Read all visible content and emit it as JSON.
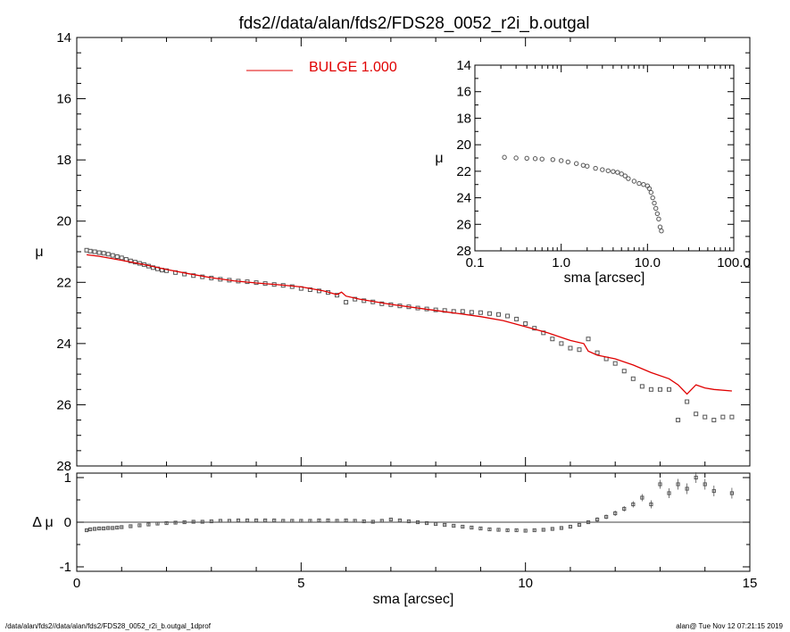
{
  "title": "fds2//data/alan/fds2/FDS28_0052_r2i_b.outgal",
  "footer": {
    "left": "/data/alan/fds2//data/alan/fds2/FDS28_0052_r2i_b.outgal_1dprof",
    "right": "alan@  Tue Nov 12 07:21:15 2019"
  },
  "colors": {
    "model": "#e00000",
    "data": "#555555",
    "axes": "#000000"
  },
  "chart_data": [
    {
      "type": "scatter",
      "panel": "main",
      "xlabel": "sma [arcsec]",
      "ylabel": "μ",
      "xlim": [
        0,
        15
      ],
      "ylim": [
        28,
        14
      ],
      "y_inverted": true,
      "x_ticks": [
        "0",
        "5",
        "10",
        "15"
      ],
      "y_ticks": [
        "14",
        "16",
        "18",
        "20",
        "22",
        "24",
        "26",
        "28"
      ],
      "legend": {
        "position": "top-left",
        "label": "BULGE  1.000"
      },
      "series": [
        {
          "kind": "points",
          "x": [
            0.22,
            0.3,
            0.4,
            0.5,
            0.6,
            0.7,
            0.8,
            0.9,
            1.0,
            1.1,
            1.2,
            1.3,
            1.4,
            1.5,
            1.6,
            1.7,
            1.8,
            1.9,
            2.0,
            2.2,
            2.4,
            2.6,
            2.8,
            3.0,
            3.2,
            3.4,
            3.6,
            3.8,
            4.0,
            4.2,
            4.4,
            4.6,
            4.8,
            5.0,
            5.2,
            5.4,
            5.6,
            5.8,
            6.0,
            6.2,
            6.4,
            6.6,
            6.8,
            7.0,
            7.2,
            7.4,
            7.6,
            7.8,
            8.0,
            8.2,
            8.4,
            8.6,
            8.8,
            9.0,
            9.2,
            9.4,
            9.6,
            9.8,
            10.0,
            10.2,
            10.4,
            10.6,
            10.8,
            11.0,
            11.2,
            11.4,
            11.6,
            11.8,
            12.0,
            12.2,
            12.4,
            12.6,
            12.8,
            13.0,
            13.2,
            13.4,
            13.6,
            13.8,
            14.0,
            14.2,
            14.4,
            14.6
          ],
          "y": [
            20.95,
            20.98,
            21.0,
            21.03,
            21.05,
            21.08,
            21.12,
            21.16,
            21.2,
            21.25,
            21.3,
            21.34,
            21.38,
            21.42,
            21.47,
            21.52,
            21.56,
            21.6,
            21.62,
            21.68,
            21.73,
            21.78,
            21.82,
            21.86,
            21.9,
            21.93,
            21.96,
            21.98,
            22.01,
            22.04,
            22.07,
            22.1,
            22.14,
            22.2,
            22.24,
            22.28,
            22.33,
            22.42,
            22.65,
            22.55,
            22.6,
            22.64,
            22.7,
            22.73,
            22.77,
            22.8,
            22.84,
            22.87,
            22.9,
            22.92,
            22.95,
            22.95,
            22.98,
            22.99,
            23.02,
            23.05,
            23.1,
            23.2,
            23.35,
            23.5,
            23.65,
            23.85,
            24.0,
            24.15,
            24.2,
            23.85,
            24.3,
            24.5,
            24.65,
            24.9,
            25.15,
            25.4,
            25.5,
            25.5,
            25.5,
            26.5,
            25.9,
            26.3,
            26.4,
            26.5,
            26.4,
            26.4
          ]
        },
        {
          "name": "BULGE  1.000",
          "kind": "line",
          "x": [
            0.22,
            0.5,
            1.0,
            1.5,
            2.0,
            2.5,
            3.0,
            3.5,
            4.0,
            4.5,
            5.0,
            5.5,
            5.8,
            5.9,
            6.0,
            6.3,
            7.0,
            8.0,
            9.0,
            9.5,
            10.0,
            10.5,
            11.0,
            11.3,
            11.4,
            11.6,
            12.0,
            12.4,
            12.8,
            13.2,
            13.4,
            13.6,
            13.8,
            14.0,
            14.2,
            14.6
          ],
          "y": [
            21.1,
            21.15,
            21.28,
            21.42,
            21.58,
            21.72,
            21.85,
            21.95,
            22.02,
            22.08,
            22.15,
            22.28,
            22.4,
            22.32,
            22.45,
            22.55,
            22.72,
            22.92,
            23.12,
            23.25,
            23.45,
            23.65,
            23.9,
            24.0,
            24.25,
            24.38,
            24.5,
            24.7,
            24.95,
            25.15,
            25.35,
            25.65,
            25.35,
            25.45,
            25.5,
            25.55
          ]
        }
      ]
    },
    {
      "type": "scatter",
      "panel": "inset",
      "xlabel": "sma [arcsec]",
      "ylabel": "μ",
      "x_scale": "log",
      "xlim": [
        0.1,
        100.0
      ],
      "ylim": [
        28,
        14
      ],
      "y_inverted": true,
      "x_ticks": [
        "0.1",
        "1.0",
        "10.0",
        "100.0"
      ],
      "y_ticks": [
        "14",
        "16",
        "18",
        "20",
        "22",
        "24",
        "26",
        "28"
      ],
      "series": [
        {
          "kind": "points",
          "x": [
            0.22,
            0.3,
            0.4,
            0.5,
            0.6,
            0.8,
            1.0,
            1.2,
            1.5,
            1.8,
            2.0,
            2.5,
            3.0,
            3.5,
            4.0,
            4.5,
            5.0,
            5.5,
            6.0,
            7.0,
            8.0,
            9.0,
            10.0,
            10.5,
            11.0,
            11.5,
            12.0,
            12.5,
            13.0,
            13.5,
            14.0,
            14.5
          ],
          "y": [
            20.95,
            21.0,
            21.02,
            21.05,
            21.08,
            21.12,
            21.2,
            21.3,
            21.42,
            21.55,
            21.62,
            21.78,
            21.88,
            21.96,
            22.02,
            22.08,
            22.2,
            22.35,
            22.55,
            22.75,
            22.92,
            23.0,
            23.1,
            23.3,
            23.6,
            24.0,
            24.4,
            24.8,
            25.2,
            25.6,
            26.2,
            26.5
          ]
        }
      ]
    },
    {
      "type": "scatter",
      "panel": "residual",
      "xlabel": "sma [arcsec]",
      "ylabel": "Δ μ",
      "xlim": [
        0,
        15
      ],
      "ylim": [
        -1.1,
        1.1
      ],
      "y_ticks": [
        "1",
        "0",
        "-1"
      ],
      "reference_line_y": 0,
      "series": [
        {
          "kind": "points_with_errors",
          "x": [
            0.22,
            0.3,
            0.4,
            0.5,
            0.6,
            0.7,
            0.8,
            0.9,
            1.0,
            1.2,
            1.4,
            1.6,
            1.8,
            2.0,
            2.2,
            2.4,
            2.6,
            2.8,
            3.0,
            3.2,
            3.4,
            3.6,
            3.8,
            4.0,
            4.2,
            4.4,
            4.6,
            4.8,
            5.0,
            5.2,
            5.4,
            5.6,
            5.8,
            6.0,
            6.2,
            6.4,
            6.6,
            6.8,
            7.0,
            7.2,
            7.4,
            7.6,
            7.8,
            8.0,
            8.2,
            8.4,
            8.6,
            8.8,
            9.0,
            9.2,
            9.4,
            9.6,
            9.8,
            10.0,
            10.2,
            10.4,
            10.6,
            10.8,
            11.0,
            11.2,
            11.4,
            11.6,
            11.8,
            12.0,
            12.2,
            12.4,
            12.6,
            12.8,
            13.0,
            13.2,
            13.4,
            13.6,
            13.8,
            14.0,
            14.2,
            14.6
          ],
          "y": [
            -0.18,
            -0.16,
            -0.15,
            -0.14,
            -0.14,
            -0.13,
            -0.13,
            -0.12,
            -0.11,
            -0.09,
            -0.07,
            -0.05,
            -0.03,
            -0.02,
            -0.01,
            0.0,
            0.01,
            0.01,
            0.02,
            0.03,
            0.03,
            0.04,
            0.04,
            0.04,
            0.04,
            0.04,
            0.03,
            0.03,
            0.03,
            0.03,
            0.04,
            0.04,
            0.03,
            0.04,
            0.03,
            0.02,
            0.01,
            0.03,
            0.06,
            0.04,
            0.02,
            0.0,
            -0.02,
            -0.04,
            -0.06,
            -0.08,
            -0.1,
            -0.12,
            -0.14,
            -0.16,
            -0.17,
            -0.18,
            -0.18,
            -0.19,
            -0.18,
            -0.17,
            -0.15,
            -0.13,
            -0.1,
            -0.06,
            0.0,
            0.06,
            0.12,
            0.2,
            0.3,
            0.4,
            0.55,
            0.4,
            0.85,
            0.65,
            0.85,
            0.75,
            1.0,
            0.85,
            0.7,
            0.65
          ],
          "err": [
            0.02,
            0.02,
            0.02,
            0.02,
            0.02,
            0.02,
            0.02,
            0.02,
            0.02,
            0.02,
            0.02,
            0.02,
            0.02,
            0.02,
            0.02,
            0.02,
            0.02,
            0.02,
            0.02,
            0.02,
            0.02,
            0.02,
            0.02,
            0.02,
            0.02,
            0.02,
            0.02,
            0.02,
            0.02,
            0.02,
            0.02,
            0.02,
            0.02,
            0.02,
            0.02,
            0.02,
            0.02,
            0.02,
            0.02,
            0.02,
            0.02,
            0.02,
            0.02,
            0.02,
            0.02,
            0.02,
            0.02,
            0.02,
            0.02,
            0.02,
            0.02,
            0.02,
            0.02,
            0.02,
            0.02,
            0.03,
            0.03,
            0.03,
            0.03,
            0.04,
            0.04,
            0.05,
            0.05,
            0.06,
            0.06,
            0.07,
            0.08,
            0.09,
            0.1,
            0.11,
            0.12,
            0.12,
            0.12,
            0.12,
            0.12,
            0.12
          ]
        }
      ]
    }
  ]
}
